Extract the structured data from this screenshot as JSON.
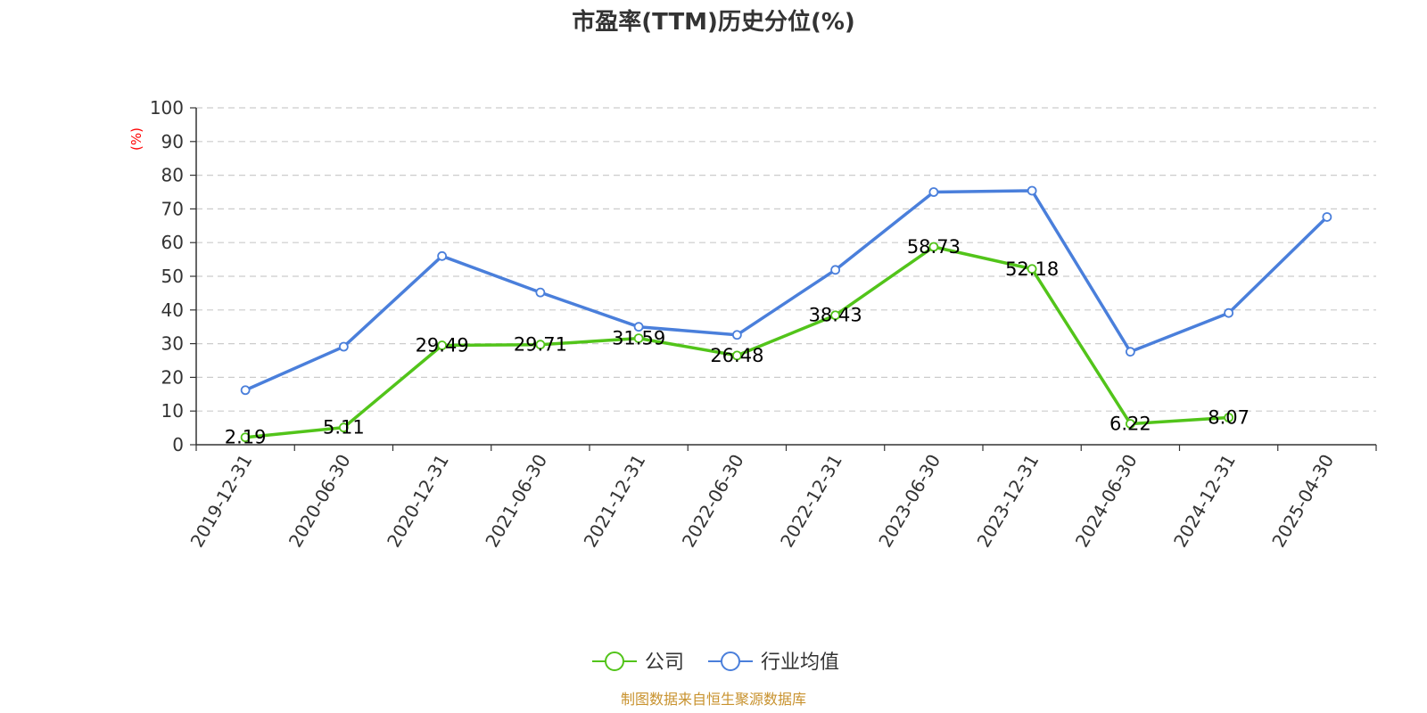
{
  "chart_data": {
    "type": "line",
    "title": "市盈率(TTM)历史分位(%)",
    "ylabel": "(%)",
    "ylim": [
      0,
      100
    ],
    "yticks": [
      "0",
      "10",
      "20",
      "30",
      "40",
      "50",
      "60",
      "70",
      "80",
      "90",
      "100"
    ],
    "categories": [
      "2019-12-31",
      "2020-06-30",
      "2020-12-31",
      "2021-06-30",
      "2021-12-31",
      "2022-06-30",
      "2022-12-31",
      "2023-06-30",
      "2023-12-31",
      "2024-06-30",
      "2024-12-31",
      "2025-04-30"
    ],
    "grid": true,
    "legend_position": "bottom",
    "series": [
      {
        "name": "公司",
        "color": "#52c41a",
        "values": [
          2.19,
          5.11,
          29.49,
          29.71,
          31.59,
          26.48,
          38.43,
          58.73,
          52.18,
          6.22,
          8.07,
          null
        ],
        "data_labels": [
          "2.19",
          "5.11",
          "29.49",
          "29.71",
          "31.59",
          "26.48",
          "38.43",
          "58.73",
          "52.18",
          "6.22",
          "8.07"
        ]
      },
      {
        "name": "行业均值",
        "color": "#4a7fdb",
        "values": [
          16.2,
          29.1,
          56.0,
          45.2,
          35.0,
          32.6,
          51.9,
          75.0,
          75.4,
          27.6,
          39.1,
          67.6
        ]
      }
    ]
  },
  "source": "制图数据来自恒生聚源数据库",
  "colors": {
    "axis": "#333333",
    "grid": "#cccccc",
    "unit": "#ff0000",
    "source": "#c8922e"
  }
}
